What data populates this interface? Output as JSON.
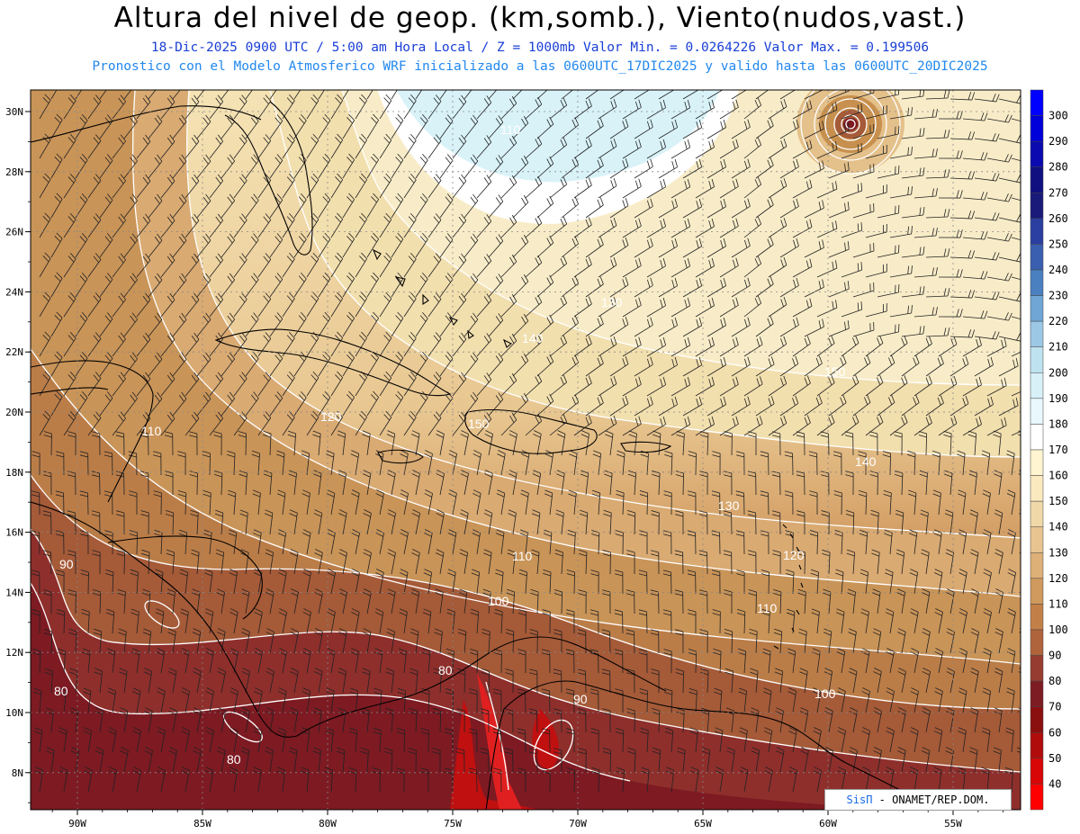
{
  "header": {
    "title": "Altura del nivel de geop. (km,somb.), Viento(nudos,vast.)",
    "line1": "18-Dic-2025  0900 UTC / 5:00 am Hora Local / Z = 1000mb  Valor Min. = 0.0264226  Valor Max. = 0.199506",
    "line2": "Pronostico con el Modelo Atmosferico WRF inicializado a las 0600UTC_17DIC2025 y valido hasta las  0600UTC_20DIC2025"
  },
  "colorbar": {
    "levels": [
      "300",
      "290",
      "280",
      "270",
      "260",
      "250",
      "240",
      "230",
      "220",
      "210",
      "200",
      "190",
      "180",
      "170",
      "160",
      "150",
      "140",
      "130",
      "120",
      "110",
      "100",
      "90",
      "80",
      "70",
      "60",
      "50",
      "40"
    ],
    "colors": [
      "#0000ff",
      "#0000d8",
      "#0a0ab0",
      "#101080",
      "#1a1a7a",
      "#2a3fa0",
      "#3a5fb0",
      "#4a80c0",
      "#6fa6d6",
      "#9cc8e6",
      "#bfe2f0",
      "#d8f0f8",
      "#e8f8fc",
      "#ffffff",
      "#fff5d0",
      "#fbeac0",
      "#f0d8a8",
      "#e8c490",
      "#ddb078",
      "#cf9a5e",
      "#c28048",
      "#b0643c",
      "#973c30",
      "#7e1c24",
      "#8a1010",
      "#b00c0c",
      "#d80606",
      "#ff0000"
    ]
  },
  "axes": {
    "lon_labels": [
      "90W",
      "85W",
      "80W",
      "75W",
      "70W",
      "65W",
      "60W",
      "55W"
    ],
    "lat_labels": [
      "30N",
      "28N",
      "26N",
      "24N",
      "22N",
      "20N",
      "18N",
      "16N",
      "14N",
      "12N",
      "10N",
      "8N"
    ]
  },
  "contour_labels": [
    "110",
    "110",
    "140",
    "150",
    "150",
    "140",
    "130",
    "130",
    "120",
    "110",
    "110",
    "120",
    "100",
    "100",
    "90",
    "80",
    "80",
    "80",
    "90",
    "120",
    "110"
  ],
  "credit": {
    "sis": "SisΠ",
    "rest": "- ONAMET/REP.DOM."
  }
}
